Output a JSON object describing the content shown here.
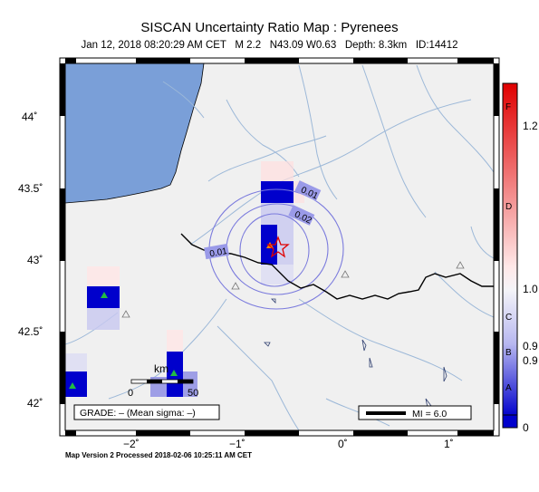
{
  "header": {
    "title": "SISCAN Uncertainty Ratio Map : Pyrenees",
    "date": "Jan 12, 2018 08:20:29 AM CET",
    "magnitude": "M 2.2",
    "location": "N43.09 W0.63",
    "depth": "Depth: 8.3km",
    "event_id": "ID:14412"
  },
  "footer": {
    "text": "Map Version 2 Processed 2018-02-06 10:25:11 AM CET"
  },
  "axes": {
    "y_ticks": [
      "44˚",
      "43.5˚",
      "43˚",
      "42.5˚",
      "42˚"
    ],
    "x_ticks": [
      "−2˚",
      "−1˚",
      "0˚",
      "1˚"
    ]
  },
  "contours": [
    "0.01",
    "0.02",
    "0.01"
  ],
  "scale_bar": {
    "unit": "km",
    "min": "0",
    "max": "50"
  },
  "grade_box": {
    "text": "GRADE: – (Mean sigma: –)"
  },
  "mi_legend": {
    "text": "MI = 6.0"
  },
  "colorbar": {
    "letters": [
      "F",
      "D",
      "C",
      "B",
      "A"
    ],
    "values": [
      "1.2",
      "1.0",
      "0.9",
      "0.9",
      "0"
    ]
  },
  "colors": {
    "ocean": "#7a9fd8",
    "land": "#f0f0f0",
    "rivers": "#9cb8d8",
    "contour": "#7b7bdd",
    "high": "#e00000",
    "low": "#0000cc"
  },
  "icons": {
    "epicenter": "red-star-icon",
    "station": "triangle-icon"
  }
}
